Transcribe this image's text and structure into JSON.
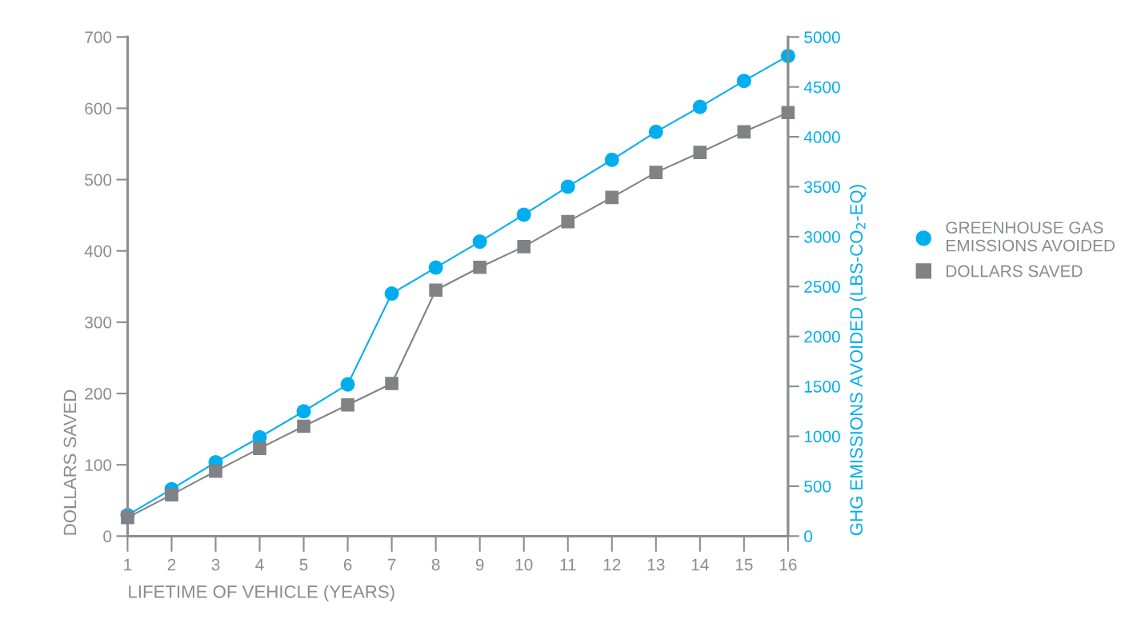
{
  "chart_data": {
    "type": "line",
    "xlabel": "LIFETIME OF VEHICLE (YEARS)",
    "ylabel": "DOLLARS SAVED",
    "y2label": "GHG EMISSIONS AVOIDED (LBS-CO$_{2}$-EQ)",
    "x": [
      1,
      2,
      3,
      4,
      5,
      6,
      7,
      8,
      9,
      10,
      11,
      12,
      13,
      14,
      15,
      16
    ],
    "series": [
      {
        "name": "GREENHOUSE GAS\nEMISSIONS AVOIDED",
        "color": "#00aeef",
        "axis": "y2",
        "marker": "circle",
        "values": [
          210,
          470,
          740,
          990,
          1250,
          1520,
          2430,
          2690,
          2950,
          3220,
          3500,
          3770,
          4050,
          4300,
          4560,
          4810
        ]
      },
      {
        "name": "DOLLARS SAVED",
        "color": "#808285",
        "marker": "square",
        "values": [
          26,
          58,
          91,
          123,
          154,
          184,
          214,
          345,
          377,
          406,
          441,
          475,
          510,
          538,
          567,
          594
        ]
      }
    ],
    "xlim": [
      1,
      16
    ],
    "xticks": [
      1,
      2,
      3,
      4,
      5,
      6,
      7,
      8,
      9,
      10,
      11,
      12,
      13,
      14,
      15,
      16
    ],
    "ylim": [
      0,
      700
    ],
    "yticks": [
      0,
      100,
      200,
      300,
      400,
      500,
      600,
      700
    ],
    "y2lim": [
      0,
      5000
    ],
    "y2ticks": [
      0,
      500,
      1000,
      1500,
      2000,
      2500,
      3000,
      3500,
      4000,
      4500,
      5000
    ],
    "grid": false,
    "legend": "right",
    "line_style": "solid"
  }
}
